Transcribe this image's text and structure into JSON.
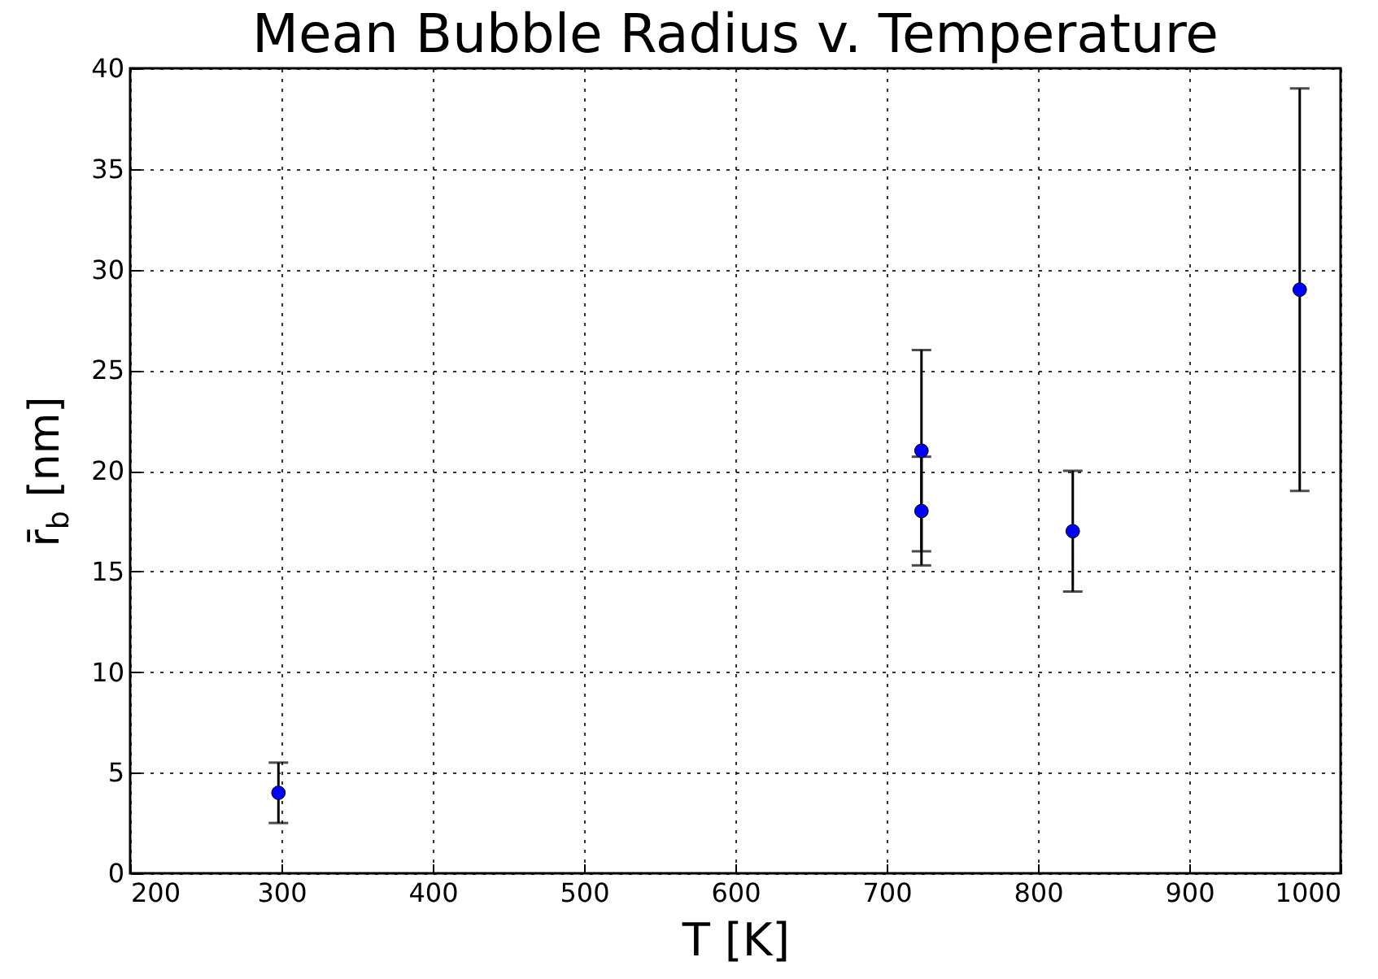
{
  "chart_data": {
    "type": "scatter",
    "title": "Mean Bubble Radius v. Temperature",
    "xlabel": "T [K]",
    "ylabel": "r̄$_{b}$ [nm]",
    "x": [
      298,
      723,
      723,
      823,
      973
    ],
    "series": [
      {
        "color": "#0000ff",
        "values": [
          4,
          21,
          18,
          17,
          29
        ],
        "errors": [
          1.5,
          5,
          2.7,
          3,
          10
        ]
      }
    ],
    "xlim": [
      200,
      1000
    ],
    "xticks": [
      200,
      300,
      400,
      500,
      600,
      700,
      800,
      900,
      1000
    ],
    "ylim": [
      0,
      40
    ],
    "yticks": [
      0,
      5,
      10,
      15,
      20,
      25,
      30,
      35,
      40
    ],
    "grid": true,
    "marker": "circle"
  }
}
